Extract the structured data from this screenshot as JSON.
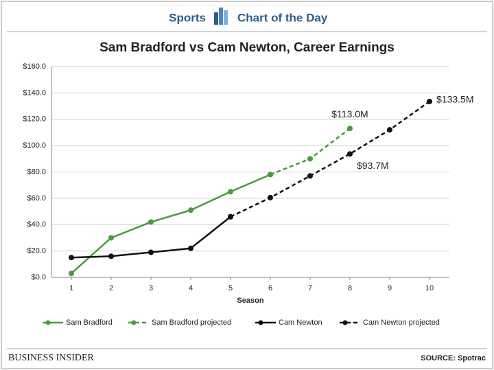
{
  "header": {
    "section": "Sports",
    "label": "Chart of the Day"
  },
  "chart_data": {
    "type": "line",
    "title": "Sam Bradford vs Cam Newton, Career Earnings",
    "x_label": "Season",
    "x": [
      1,
      2,
      3,
      4,
      5,
      6,
      7,
      8,
      9,
      10
    ],
    "xlim": [
      0.5,
      10.5
    ],
    "xticks": [
      1,
      2,
      3,
      4,
      5,
      6,
      7,
      8,
      9,
      10
    ],
    "ylim": [
      0,
      160
    ],
    "yticks": [
      {
        "value": 0,
        "label": "$0.0"
      },
      {
        "value": 20,
        "label": "$20.0"
      },
      {
        "value": 40,
        "label": "$40.0"
      },
      {
        "value": 60,
        "label": "$60.0"
      },
      {
        "value": 80,
        "label": "$80.0"
      },
      {
        "value": 100,
        "label": "$100.0"
      },
      {
        "value": 120,
        "label": "$120.0"
      },
      {
        "value": 140,
        "label": "$140.0"
      },
      {
        "value": 160,
        "label": "$160.0"
      }
    ],
    "grid": true,
    "legend": "bottom",
    "series": [
      {
        "name": "Sam Bradford",
        "color": "#4a9a3e",
        "line_style": "solid",
        "values": [
          3,
          30,
          42,
          51,
          65,
          78,
          null,
          null,
          null,
          null
        ]
      },
      {
        "name": "Sam Bradford projected",
        "color": "#4a9a3e",
        "line_style": "dashed",
        "values": [
          null,
          null,
          null,
          null,
          null,
          78,
          90,
          113,
          null,
          null
        ],
        "value_labels": [
          null,
          null,
          null,
          null,
          null,
          null,
          null,
          "$113.0M",
          null,
          null
        ]
      },
      {
        "name": "Cam Newton",
        "color": "#111111",
        "line_style": "solid",
        "values": [
          15,
          16,
          19,
          22,
          46,
          null,
          null,
          null,
          null,
          null
        ]
      },
      {
        "name": "Cam Newton projected",
        "color": "#111111",
        "line_style": "dashed",
        "values": [
          null,
          null,
          null,
          null,
          46,
          60.5,
          77,
          93.7,
          112,
          133.5
        ],
        "value_labels": [
          null,
          null,
          null,
          null,
          null,
          null,
          null,
          "$93.7M",
          null,
          "$133.5M"
        ]
      }
    ]
  },
  "footer": {
    "brand": "BUSINESS INSIDER",
    "source": "SOURCE: Spotrac"
  }
}
